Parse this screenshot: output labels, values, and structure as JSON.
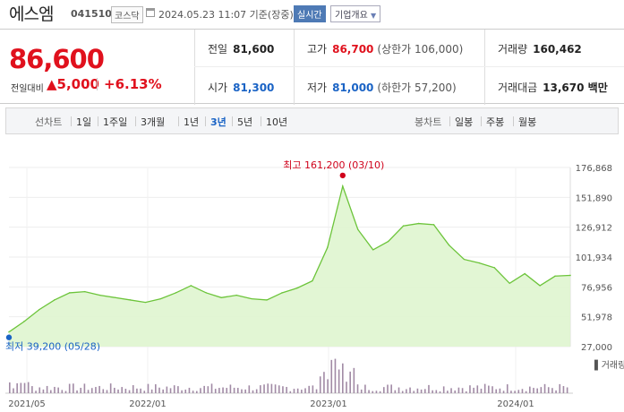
{
  "header": {
    "stock_name": "에스엠",
    "stock_code": "041510",
    "market_badge": "코스닥",
    "timestamp": "2024.05.23 11:07 기준(장중)",
    "realtime_badge": "실시간",
    "company_info_button": "기업개요"
  },
  "price": {
    "current": "86,600",
    "change_label": "전일대비",
    "change_value": "5,000",
    "change_pct": "+6.13%"
  },
  "stats": {
    "prev_close": {
      "label": "전일",
      "value": "81,600"
    },
    "high": {
      "label": "고가",
      "value": "86,700",
      "note": "(상한가 106,000)"
    },
    "volume": {
      "label": "거래량",
      "value": "160,462"
    },
    "open": {
      "label": "시가",
      "value": "81,300"
    },
    "low": {
      "label": "저가",
      "value": "81,000",
      "note": "(하한가 57,200)"
    },
    "trade_amount": {
      "label": "거래대금",
      "value": "13,670 백만"
    }
  },
  "periods": {
    "line_label": "선차트",
    "line_items": [
      "1일",
      "1주일",
      "3개월",
      "1년",
      "3년",
      "5년",
      "10년"
    ],
    "active": "3년",
    "candle_label": "봉차트",
    "candle_items": [
      "일봉",
      "주봉",
      "월봉"
    ]
  },
  "chart_data": {
    "type": "area",
    "y_ticks": [
      "176,868",
      "151,890",
      "126,912",
      "101,934",
      "76,956",
      "51,978",
      "27,000"
    ],
    "ylim": [
      27000,
      176868
    ],
    "x_ticks": [
      "2021/05",
      "2022/01",
      "2023/01",
      "2024/01"
    ],
    "high_annotation": "최고 161,200 (03/10)",
    "low_annotation": "최저 39,200 (05/28)",
    "volume_label": "거래량",
    "x": [
      "2021-05-28",
      "2021-06",
      "2021-07",
      "2021-08",
      "2021-09",
      "2021-10",
      "2021-11",
      "2021-12",
      "2022-01",
      "2022-02",
      "2022-03",
      "2022-04",
      "2022-05",
      "2022-06",
      "2022-07",
      "2022-08",
      "2022-09",
      "2022-10",
      "2022-11",
      "2022-12",
      "2023-01",
      "2023-02",
      "2023-03-10",
      "2023-03",
      "2023-04",
      "2023-05",
      "2023-06",
      "2023-07",
      "2023-08",
      "2023-09",
      "2023-10",
      "2023-11",
      "2023-12",
      "2024-01",
      "2024-02",
      "2024-03",
      "2024-04",
      "2024-05"
    ],
    "values": [
      39200,
      48000,
      58000,
      66000,
      72000,
      73000,
      70000,
      68000,
      66000,
      64000,
      67000,
      72000,
      78000,
      72000,
      68000,
      70000,
      67000,
      66000,
      72000,
      76000,
      82000,
      110000,
      161200,
      125000,
      108000,
      115000,
      128000,
      130000,
      129000,
      112000,
      100000,
      97000,
      93000,
      80000,
      88000,
      78000,
      86000,
      86600
    ],
    "colors": {
      "fill": "#dff5cf",
      "line": "#6cc43a",
      "volume": "#a18aa5"
    }
  }
}
